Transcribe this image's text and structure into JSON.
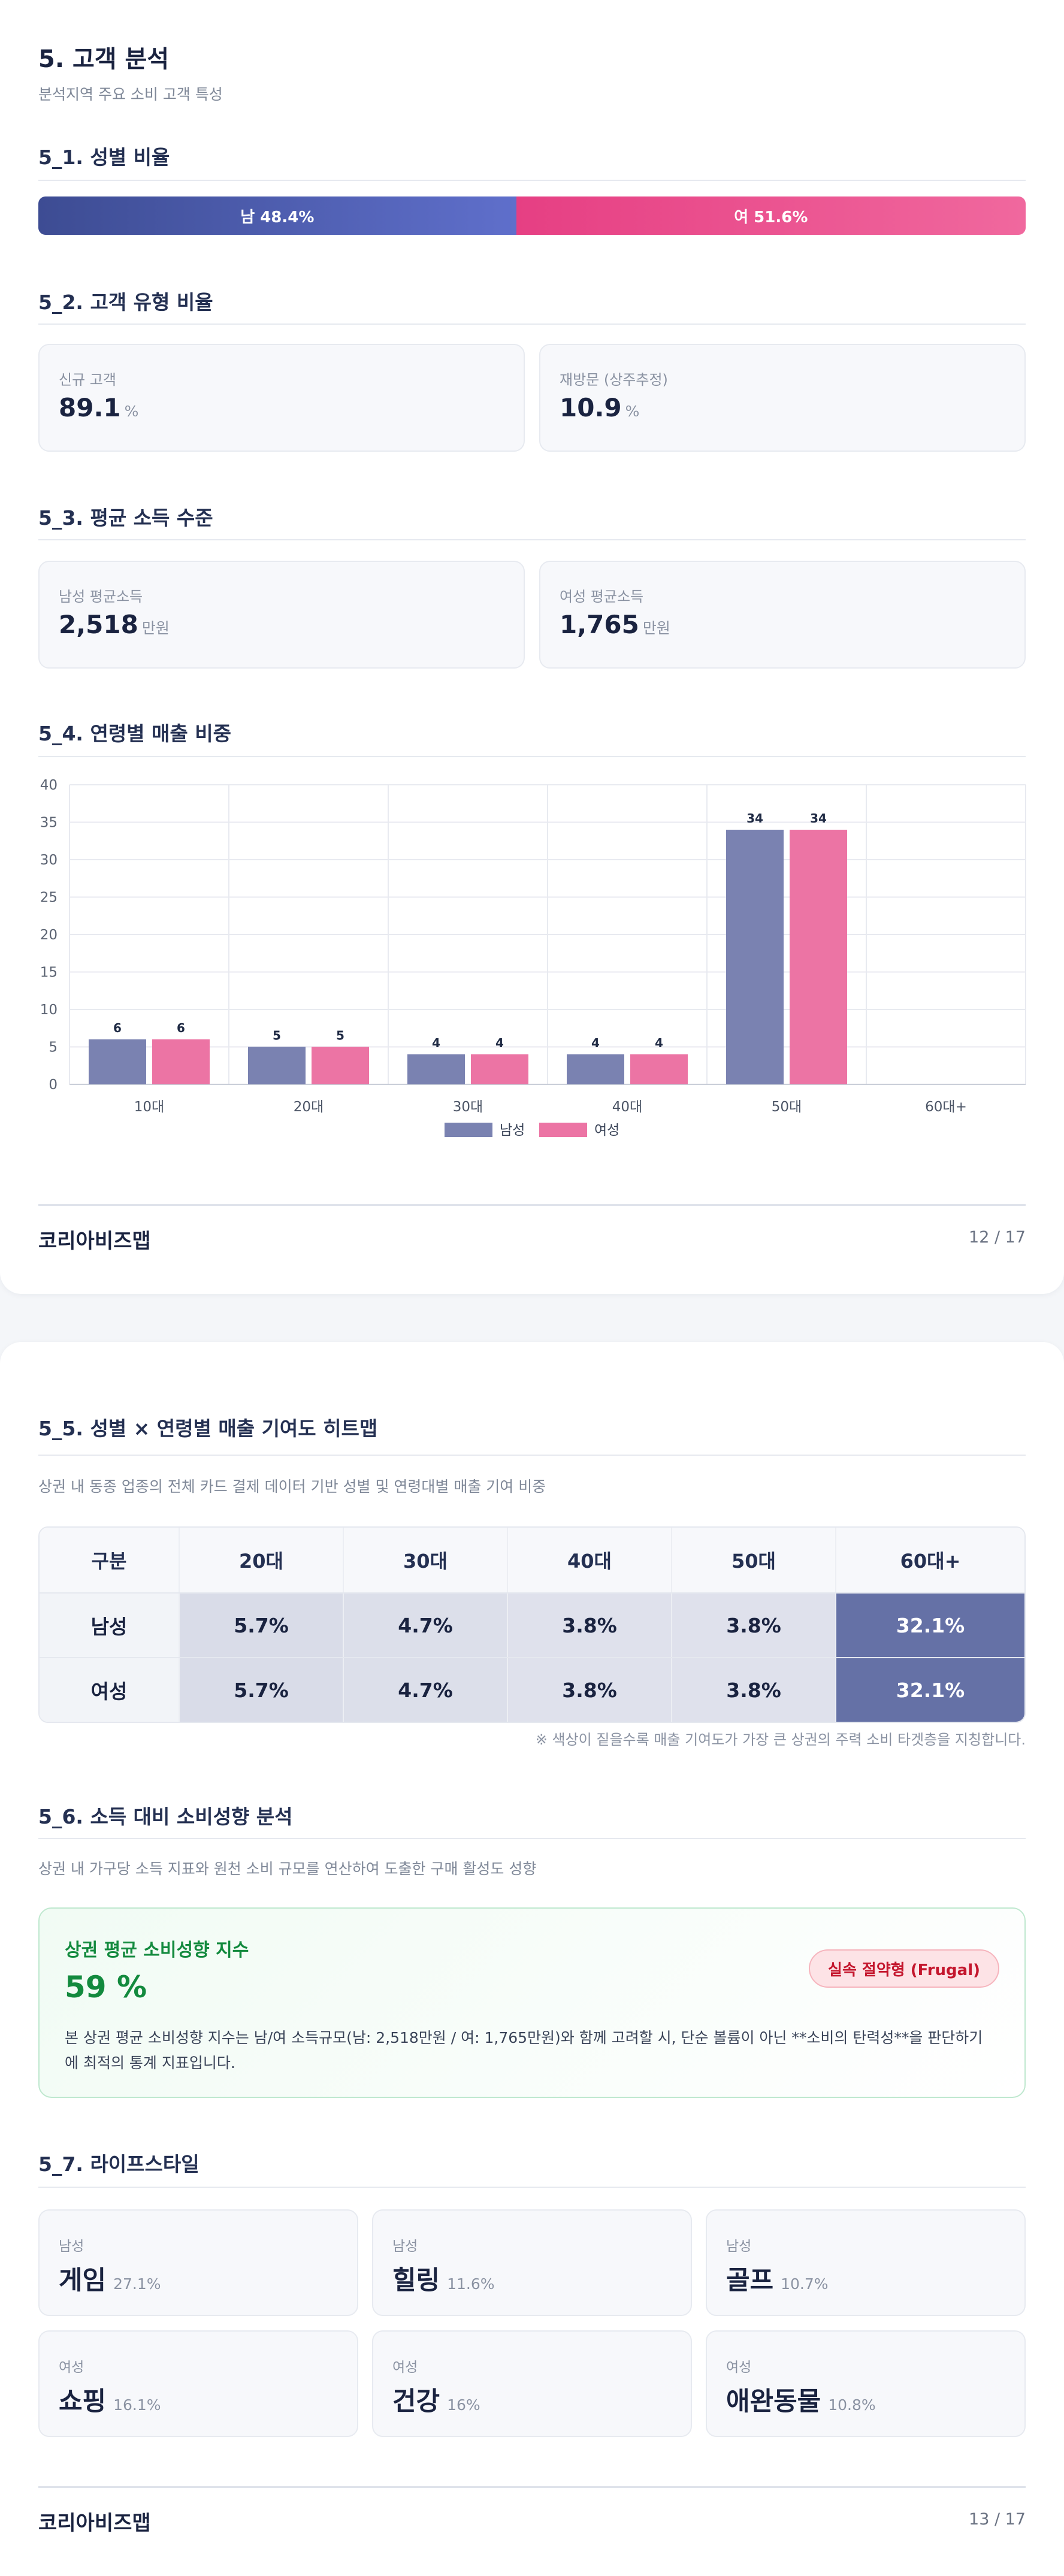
{
  "page1": {
    "title": "5. 고객 분석",
    "subtitle": "분석지역 주요 소비 고객 특성",
    "gender": {
      "heading": "5_1. 성별 비율",
      "male_label": "남 48.4%",
      "female_label": "여 51.6%",
      "male_share": 48.4,
      "female_share": 51.6,
      "male_color": "#4a59b0",
      "female_color": "#ec4d8e"
    },
    "customer_type": {
      "heading": "5_2. 고객 유형 비율",
      "cards": [
        {
          "label": "신규 고객",
          "value": "89.1",
          "unit": "%"
        },
        {
          "label": "재방문 (상주추정)",
          "value": "10.9",
          "unit": "%"
        }
      ]
    },
    "income": {
      "heading": "5_3. 평균 소득 수준",
      "cards": [
        {
          "label": "남성 평균소득",
          "value": "2,518",
          "unit": "만원"
        },
        {
          "label": "여성 평균소득",
          "value": "1,765",
          "unit": "만원"
        }
      ]
    },
    "age_sales_heading": "5_4. 연령별 매출 비중",
    "footer": {
      "brand": "코리아비즈맵",
      "page": "12 / 17"
    }
  },
  "chart_data": {
    "type": "bar",
    "categories": [
      "10대",
      "20대",
      "30대",
      "40대",
      "50대",
      "60대+"
    ],
    "series": [
      {
        "name": "남성",
        "values": [
          6,
          5,
          4,
          4,
          34,
          null
        ],
        "labels": [
          "6",
          "5",
          "4",
          "4",
          "34",
          ""
        ],
        "color": "#7a82b1"
      },
      {
        "name": "여성",
        "values": [
          6,
          5,
          4,
          4,
          34,
          null
        ],
        "labels": [
          "6",
          "5",
          "4",
          "4",
          "34",
          ""
        ],
        "color": "#ec74a4"
      }
    ],
    "ylim": [
      0,
      40
    ],
    "yticks": [
      "0",
      "5",
      "10",
      "15",
      "20",
      "25",
      "30",
      "35",
      "40"
    ],
    "grid": true,
    "legend": "bottom"
  },
  "page2": {
    "heatmap": {
      "heading": "5_5. 성별 × 연령별 매출 기여도 히트맵",
      "description": "상권 내 동종 업종의 전체 카드 결제 데이터 기반 성별 및 연령대별 매출 기여 비중",
      "columns": [
        "구분",
        "20대",
        "30대",
        "40대",
        "50대",
        "60대+"
      ],
      "rows": [
        {
          "label": "남성",
          "cells": [
            "5.7%",
            "4.7%",
            "3.8%",
            "3.8%",
            "32.1%"
          ]
        },
        {
          "label": "여성",
          "cells": [
            "5.7%",
            "4.7%",
            "3.8%",
            "3.8%",
            "32.1%"
          ]
        }
      ],
      "note": "※ 색상이 짙을수록 매출 기여도가 가장 큰 상권의 주력 소비 타겟층을 지칭합니다."
    },
    "consumption": {
      "heading": "5_6. 소득 대비 소비성향 분석",
      "description": "상권 내 가구당 소득 지표와 원천 소비 규모를 연산하여 도출한 구매 활성도 성향",
      "card_title": "상권 평균 소비성향 지수",
      "value": "59 %",
      "badge": "실속 절약형 (Frugal)",
      "body_line1": "본 상권 평균 소비성향 지수는 남/여 소득규모(남: 2,518만원 / 여: 1,765만원)와 함께 고려할 시, 단순 볼륨이 아닌 **소비의 탄력성**을 판단하기",
      "body_line2": "에 최적의 통계 지표입니다."
    },
    "lifestyle": {
      "heading": "5_7. 라이프스타일",
      "cards": [
        {
          "cat": "남성",
          "name": "게임",
          "pct": "27.1%"
        },
        {
          "cat": "남성",
          "name": "힐링",
          "pct": "11.6%"
        },
        {
          "cat": "남성",
          "name": "골프",
          "pct": "10.7%"
        },
        {
          "cat": "여성",
          "name": "쇼핑",
          "pct": "16.1%"
        },
        {
          "cat": "여성",
          "name": "건강",
          "pct": "16%"
        },
        {
          "cat": "여성",
          "name": "애완동물",
          "pct": "10.8%"
        }
      ]
    },
    "footer": {
      "brand": "코리아비즈맵",
      "page": "13 / 17"
    }
  }
}
